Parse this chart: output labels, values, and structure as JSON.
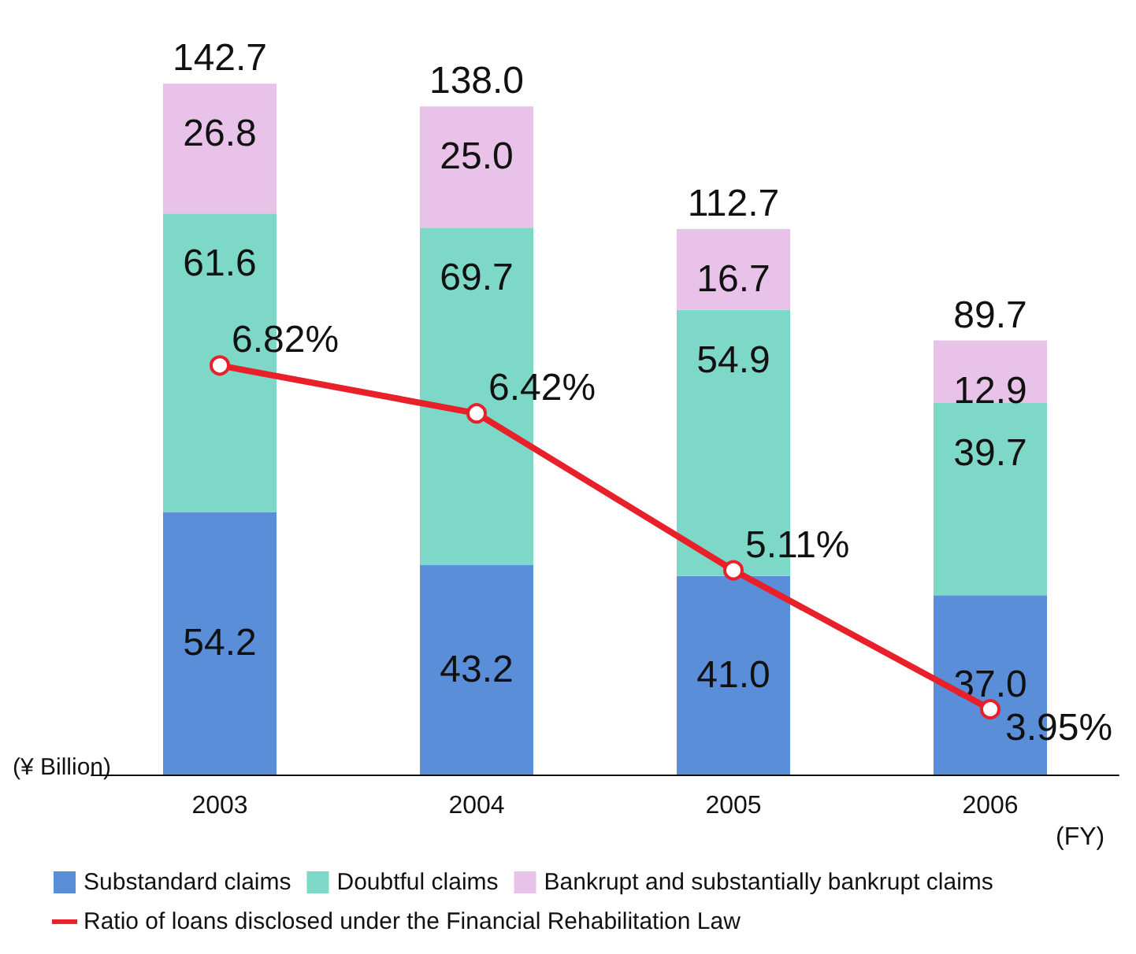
{
  "chart_data": {
    "type": "bar",
    "stacked": true,
    "categories": [
      "2003",
      "2004",
      "2005",
      "2006"
    ],
    "xlabel": "(FY)",
    "ylabel": "(¥ Billion)",
    "series": [
      {
        "name": "Substandard claims",
        "color": "#5b8ed8",
        "values": [
          54.2,
          43.2,
          41.0,
          37.0
        ],
        "value_labels": [
          "54.2",
          "43.2",
          "41.0",
          "37.0"
        ]
      },
      {
        "name": "Doubtful claims",
        "color": "#7dd8c8",
        "values": [
          61.6,
          69.7,
          54.9,
          39.7
        ],
        "value_labels": [
          "61.6",
          "69.7",
          "54.9",
          "39.7"
        ]
      },
      {
        "name": "Bankrupt and substantially bankrupt claims",
        "color": "#e8c2e8",
        "values": [
          26.8,
          25.0,
          16.7,
          12.9
        ],
        "value_labels": [
          "26.8",
          "25.0",
          "16.7",
          "12.9"
        ]
      },
      {
        "name": "Ratio of loans disclosed under the Financial Rehabilitation Law",
        "type": "line",
        "axis": "y2",
        "color": "#e8202a",
        "marker": "circle",
        "values": [
          6.82,
          6.42,
          5.11,
          3.95
        ],
        "value_labels": [
          "6.82%",
          "6.42%",
          "5.11%",
          "3.95%"
        ]
      }
    ],
    "totals": [
      "142.7",
      "138.0",
      "112.7",
      "89.7"
    ],
    "legend": "bottom"
  }
}
